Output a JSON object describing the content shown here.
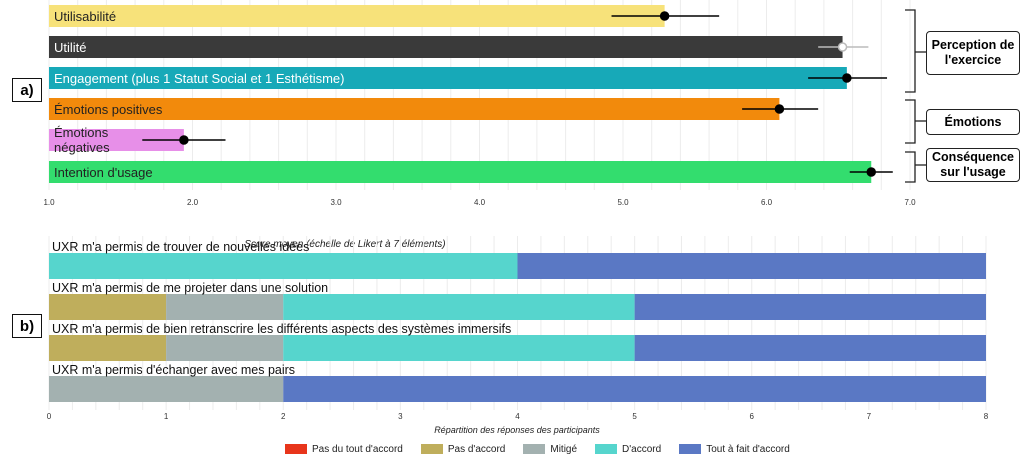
{
  "chart_data": [
    {
      "type": "bar",
      "orientation": "horizontal",
      "panel_label": "a)",
      "xlabel": "Score moyen (échelle de Likert à 7 éléments)",
      "xlim": [
        1.0,
        7.0
      ],
      "xticks": [
        "1.0",
        "2.0",
        "3.0",
        "4.0",
        "5.0",
        "6.0",
        "7.0"
      ],
      "grid": "vertical",
      "categories": [
        "Utilisabilité",
        "Utilité",
        "Engagement (plus 1 Statut Social et 1 Esthétisme)",
        "Émotions positives",
        "Émotions négatives",
        "Intention d'usage"
      ],
      "values": [
        5.29,
        6.53,
        6.56,
        6.09,
        1.94,
        6.73
      ],
      "error_low": [
        4.92,
        6.36,
        6.29,
        5.83,
        1.65,
        6.58
      ],
      "error_high": [
        5.67,
        6.71,
        6.84,
        6.36,
        2.23,
        6.88
      ],
      "bar_colors": [
        "#f7e27a",
        "#3a3a3a",
        "#17a9b8",
        "#f28a0c",
        "#e78fe8",
        "#33dd6e"
      ],
      "label_colors": [
        "#222222",
        "#ffffff",
        "#ffffff",
        "#222222",
        "#222222",
        "#222222"
      ],
      "error_colors": [
        "#000000",
        "#bbbbbb",
        "#000000",
        "#000000",
        "#000000",
        "#000000"
      ],
      "groups": [
        {
          "label": "Perception de l'exercice",
          "rows": [
            0,
            2
          ]
        },
        {
          "label": "Émotions",
          "rows": [
            3,
            4
          ]
        },
        {
          "label": "Conséquence sur l'usage",
          "rows": [
            5,
            5
          ]
        }
      ]
    },
    {
      "type": "bar",
      "orientation": "horizontal",
      "stacked": true,
      "panel_label": "b)",
      "xlabel": "Répartition des réponses des participants",
      "xlim": [
        0,
        8
      ],
      "xticks": [
        "0",
        "1",
        "2",
        "3",
        "4",
        "5",
        "6",
        "7",
        "8"
      ],
      "grid": "vertical",
      "categories": [
        "UXR m'a permis de trouver de nouvelles idées",
        "UXR m'a permis de me projeter dans une solution",
        "UXR m'a permis de bien retranscrire les différents aspects des systèmes immersifs",
        "UXR m'a permis d'échanger avec mes pairs"
      ],
      "series": [
        {
          "name": "Pas du tout d'accord",
          "color": "#e8351b",
          "values": [
            0,
            0,
            0,
            0
          ]
        },
        {
          "name": "Pas d'accord",
          "color": "#bfae5c",
          "values": [
            0,
            1,
            1,
            0
          ]
        },
        {
          "name": "Mitigé",
          "color": "#a3b1b0",
          "values": [
            0,
            1,
            1,
            2
          ]
        },
        {
          "name": "D'accord",
          "color": "#56d5cd",
          "values": [
            4,
            3,
            3,
            0
          ]
        },
        {
          "name": "Tout à fait d'accord",
          "color": "#5a78c4",
          "values": [
            4,
            3,
            3,
            6
          ]
        }
      ],
      "legend_position": "bottom"
    }
  ]
}
